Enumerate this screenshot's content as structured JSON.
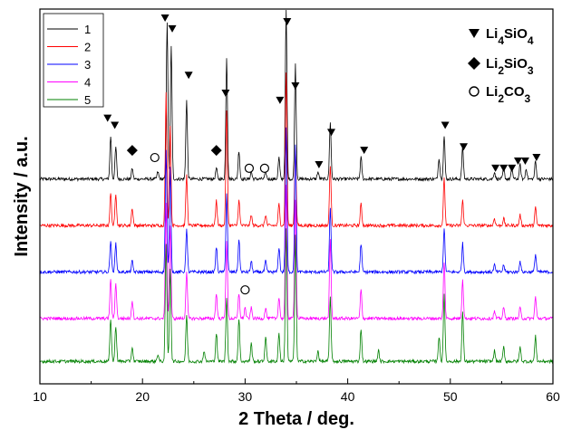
{
  "chart_data": {
    "type": "line",
    "xlabel": "2 Theta / deg.",
    "ylabel": "Intensity / a.u.",
    "xlim": [
      10,
      60
    ],
    "x_ticks": [
      10,
      20,
      30,
      40,
      50,
      60
    ],
    "ylim": [
      0,
      100
    ],
    "grid": false,
    "legend_position": "top-left",
    "series": [
      {
        "name": "1",
        "color": "#000000",
        "baseline": 55,
        "peaks": [
          [
            16.9,
            12
          ],
          [
            17.4,
            9
          ],
          [
            19.0,
            3
          ],
          [
            21.5,
            2
          ],
          [
            22.4,
            44
          ],
          [
            22.8,
            37
          ],
          [
            24.3,
            22
          ],
          [
            27.2,
            3
          ],
          [
            28.2,
            34
          ],
          [
            29.4,
            8
          ],
          [
            30.6,
            2
          ],
          [
            32.0,
            2
          ],
          [
            33.3,
            6
          ],
          [
            34.0,
            47
          ],
          [
            34.9,
            32
          ],
          [
            37.1,
            2
          ],
          [
            38.3,
            16
          ],
          [
            41.3,
            6
          ],
          [
            48.9,
            6
          ],
          [
            49.4,
            12
          ],
          [
            51.2,
            9
          ],
          [
            54.3,
            2
          ],
          [
            55.2,
            3
          ],
          [
            56.0,
            3
          ],
          [
            56.8,
            4
          ],
          [
            57.4,
            3
          ],
          [
            58.3,
            5
          ]
        ]
      },
      {
        "name": "2",
        "color": "#ff0000",
        "baseline": 42,
        "peaks": [
          [
            16.9,
            9
          ],
          [
            17.4,
            9
          ],
          [
            19.0,
            5
          ],
          [
            22.3,
            37
          ],
          [
            22.7,
            28
          ],
          [
            24.3,
            14
          ],
          [
            27.2,
            7
          ],
          [
            28.2,
            32
          ],
          [
            29.4,
            7
          ],
          [
            30.6,
            3
          ],
          [
            32.0,
            3
          ],
          [
            33.3,
            6
          ],
          [
            34.0,
            43
          ],
          [
            34.9,
            22
          ],
          [
            38.3,
            17
          ],
          [
            41.3,
            6
          ],
          [
            49.4,
            13
          ],
          [
            51.2,
            7
          ],
          [
            54.3,
            2
          ],
          [
            55.2,
            2
          ],
          [
            56.8,
            3
          ],
          [
            58.3,
            5
          ]
        ]
      },
      {
        "name": "3",
        "color": "#0000ff",
        "baseline": 29,
        "peaks": [
          [
            16.9,
            9
          ],
          [
            17.4,
            8
          ],
          [
            19.0,
            3
          ],
          [
            22.3,
            34
          ],
          [
            22.7,
            29
          ],
          [
            24.3,
            12
          ],
          [
            27.2,
            7
          ],
          [
            28.2,
            22
          ],
          [
            29.4,
            9
          ],
          [
            30.6,
            3
          ],
          [
            32.0,
            3
          ],
          [
            33.3,
            7
          ],
          [
            34.0,
            40
          ],
          [
            34.9,
            36
          ],
          [
            38.3,
            18
          ],
          [
            41.3,
            8
          ],
          [
            49.4,
            12
          ],
          [
            51.2,
            8
          ],
          [
            54.3,
            2
          ],
          [
            55.2,
            2
          ],
          [
            56.8,
            3
          ],
          [
            58.3,
            5
          ]
        ]
      },
      {
        "name": "4",
        "color": "#ff00ff",
        "baseline": 16,
        "peaks": [
          [
            16.9,
            11
          ],
          [
            17.4,
            10
          ],
          [
            19.0,
            5
          ],
          [
            22.3,
            32
          ],
          [
            22.7,
            26
          ],
          [
            24.3,
            13
          ],
          [
            27.2,
            7
          ],
          [
            28.2,
            22
          ],
          [
            29.4,
            7
          ],
          [
            30.0,
            3
          ],
          [
            30.6,
            3
          ],
          [
            32.0,
            3
          ],
          [
            33.3,
            6
          ],
          [
            34.0,
            37
          ],
          [
            34.9,
            33
          ],
          [
            38.3,
            22
          ],
          [
            41.3,
            8
          ],
          [
            49.4,
            16
          ],
          [
            51.2,
            11
          ],
          [
            54.3,
            2
          ],
          [
            55.2,
            3
          ],
          [
            56.8,
            3
          ],
          [
            58.3,
            6
          ]
        ]
      },
      {
        "name": "5",
        "color": "#008000",
        "baseline": 4,
        "peaks": [
          [
            16.9,
            12
          ],
          [
            17.4,
            10
          ],
          [
            19.0,
            4
          ],
          [
            21.5,
            2
          ],
          [
            22.3,
            33
          ],
          [
            22.7,
            26
          ],
          [
            24.3,
            13
          ],
          [
            26.0,
            3
          ],
          [
            27.2,
            8
          ],
          [
            28.2,
            18
          ],
          [
            29.4,
            12
          ],
          [
            30.6,
            5
          ],
          [
            32.0,
            7
          ],
          [
            33.3,
            8
          ],
          [
            34.0,
            37
          ],
          [
            34.9,
            35
          ],
          [
            37.1,
            3
          ],
          [
            38.3,
            18
          ],
          [
            41.3,
            9
          ],
          [
            43.0,
            3
          ],
          [
            48.9,
            7
          ],
          [
            49.4,
            19
          ],
          [
            51.2,
            14
          ],
          [
            54.3,
            3
          ],
          [
            55.2,
            4
          ],
          [
            56.8,
            4
          ],
          [
            58.3,
            7
          ]
        ]
      }
    ],
    "markers": {
      "Li4SiO4": [
        [
          16.6,
          72
        ],
        [
          17.3,
          70
        ],
        [
          22.2,
          100
        ],
        [
          22.9,
          97
        ],
        [
          24.5,
          84
        ],
        [
          28.1,
          79
        ],
        [
          33.4,
          77
        ],
        [
          34.1,
          99
        ],
        [
          34.9,
          81
        ],
        [
          37.2,
          59
        ],
        [
          38.4,
          68
        ],
        [
          41.6,
          63
        ],
        [
          49.5,
          70
        ],
        [
          51.3,
          64
        ],
        [
          54.4,
          58
        ],
        [
          55.2,
          58
        ],
        [
          56.0,
          58
        ],
        [
          56.6,
          60
        ],
        [
          57.3,
          60
        ],
        [
          58.4,
          61
        ]
      ],
      "Li2SiO3": [
        [
          19.0,
          63
        ],
        [
          27.2,
          63
        ]
      ],
      "Li2CO3": [
        [
          21.2,
          61
        ],
        [
          30.4,
          58
        ],
        [
          31.9,
          58
        ],
        [
          30.0,
          24
        ]
      ]
    },
    "marker_legend": [
      {
        "symbol": "triangle-down",
        "label": "Li4SiO4"
      },
      {
        "symbol": "diamond",
        "label": "Li2SiO3"
      },
      {
        "symbol": "circle",
        "label": "Li2CO3"
      }
    ]
  }
}
